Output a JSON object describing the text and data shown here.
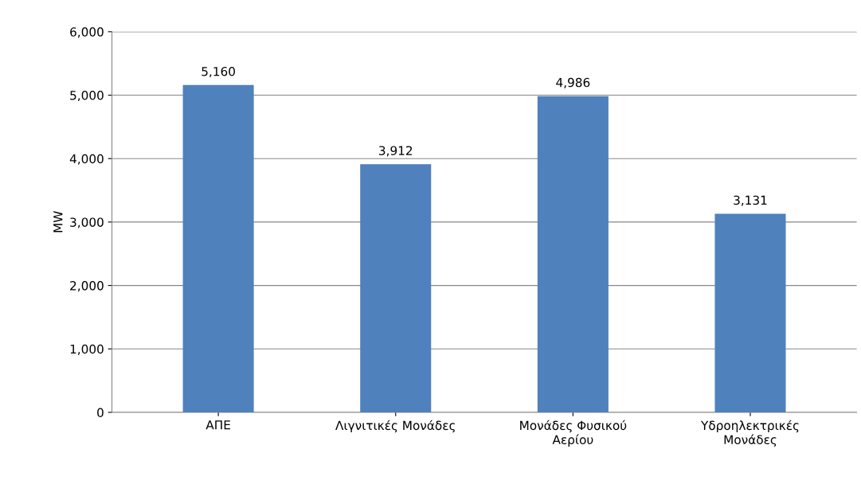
{
  "chart_data": {
    "type": "bar",
    "ylabel": "MW",
    "categories": [
      "ΑΠΕ",
      "Λιγνιτικές Μονάδες",
      "Μονάδες Φυσικού Αερίου",
      "Υδροηλεκτρικές Μονάδες"
    ],
    "values": [
      5160,
      3912,
      4986,
      3131
    ],
    "color": "#4f81bd",
    "ylim": [
      0,
      6000
    ],
    "yticks": [
      {
        "value": 0,
        "label": "0"
      },
      {
        "value": 1000,
        "label": "1,000"
      },
      {
        "value": 2000,
        "label": "2,000"
      },
      {
        "value": 3000,
        "label": "3,000"
      },
      {
        "value": 4000,
        "label": "4,000"
      },
      {
        "value": 5000,
        "label": "5,000"
      },
      {
        "value": 6000,
        "label": "6,000"
      }
    ],
    "value_labels": [
      "5,160",
      "3,912",
      "4,986",
      "3,131"
    ],
    "grid": "y",
    "legend": false
  }
}
